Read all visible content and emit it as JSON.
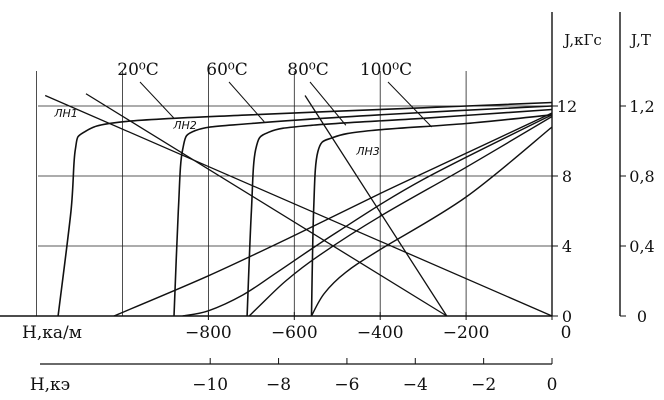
{
  "chart_data": {
    "type": "line",
    "title": "",
    "x_axis_top": {
      "label": "H,ка/м",
      "ticks": [
        "−800",
        "−600",
        "−400",
        "−200",
        "0"
      ],
      "tick_values": [
        -800,
        -600,
        -400,
        -200,
        0
      ],
      "xlim": [
        -1200,
        0
      ]
    },
    "x_axis_bottom": {
      "label": "H,кэ",
      "ticks": [
        "−10",
        "−8",
        "−6",
        "−4",
        "−2",
        "0"
      ],
      "tick_values": [
        -10,
        -8,
        -6,
        -4,
        -2,
        0
      ]
    },
    "y_axis_left": {
      "label": "J,кГс",
      "ticks": [
        "0",
        "4",
        "8",
        "12"
      ],
      "tick_values": [
        0,
        4,
        8,
        12
      ],
      "ylim": [
        0,
        14
      ]
    },
    "y_axis_right": {
      "label": "J,T",
      "ticks": [
        "0",
        "0,4",
        "0,8",
        "1,2"
      ],
      "tick_values": [
        0,
        0.4,
        0.8,
        1.2
      ]
    },
    "grid": true,
    "temperature_labels": [
      "20⁰C",
      "60⁰C",
      "80⁰C",
      "100⁰C"
    ],
    "load_line_labels": [
      "ЛН1",
      "ЛН2",
      "ЛН3"
    ],
    "series": [
      {
        "name": "20⁰C",
        "J_curve": [
          [
            -1150,
            0
          ],
          [
            -1120,
            6
          ],
          [
            -1110,
            9.5
          ],
          [
            -1090,
            10.5
          ],
          [
            -1000,
            11.1
          ],
          [
            -700,
            11.5
          ],
          [
            -300,
            11.9
          ],
          [
            0,
            12.2
          ]
        ],
        "B_curve": [
          [
            -1020,
            0
          ],
          [
            -800,
            2.3
          ],
          [
            -600,
            4.6
          ],
          [
            -400,
            7.0
          ],
          [
            -200,
            9.3
          ],
          [
            0,
            11.6
          ]
        ]
      },
      {
        "name": "60⁰C",
        "J_curve": [
          [
            -880,
            0
          ],
          [
            -870,
            6
          ],
          [
            -860,
            9.5
          ],
          [
            -830,
            10.6
          ],
          [
            -700,
            11.0
          ],
          [
            -400,
            11.5
          ],
          [
            0,
            12.0
          ]
        ],
        "B_curve": [
          [
            -860,
            0
          ],
          [
            -800,
            0.3
          ],
          [
            -720,
            1.2
          ],
          [
            -640,
            2.5
          ],
          [
            -500,
            4.8
          ],
          [
            -300,
            7.8
          ],
          [
            0,
            11.5
          ]
        ]
      },
      {
        "name": "80⁰C",
        "J_curve": [
          [
            -710,
            0
          ],
          [
            -700,
            6
          ],
          [
            -690,
            9.5
          ],
          [
            -660,
            10.5
          ],
          [
            -560,
            10.9
          ],
          [
            -300,
            11.3
          ],
          [
            0,
            11.8
          ]
        ],
        "B_curve": [
          [
            -705,
            0
          ],
          [
            -680,
            0.6
          ],
          [
            -620,
            2.0
          ],
          [
            -540,
            3.5
          ],
          [
            -400,
            5.7
          ],
          [
            -200,
            8.5
          ],
          [
            0,
            11.4
          ]
        ]
      },
      {
        "name": "100⁰C",
        "J_curve": [
          [
            -560,
            0
          ],
          [
            -555,
            6
          ],
          [
            -545,
            9.4
          ],
          [
            -510,
            10.2
          ],
          [
            -420,
            10.6
          ],
          [
            -200,
            11.0
          ],
          [
            0,
            11.5
          ]
        ],
        "B_curve": [
          [
            -560,
            0
          ],
          [
            -530,
            1.3
          ],
          [
            -480,
            2.5
          ],
          [
            -400,
            3.8
          ],
          [
            -200,
            6.8
          ],
          [
            0,
            10.8
          ]
        ]
      }
    ],
    "load_lines": [
      {
        "name": "ЛН1",
        "points": [
          [
            -1180,
            12.6
          ],
          [
            0,
            0
          ]
        ]
      },
      {
        "name": "ЛН2",
        "points": [
          [
            -1085,
            12.7
          ],
          [
            -245,
            0
          ]
        ]
      },
      {
        "name": "ЛН3",
        "points": [
          [
            -575,
            12.6
          ],
          [
            -245,
            0
          ]
        ]
      }
    ]
  }
}
